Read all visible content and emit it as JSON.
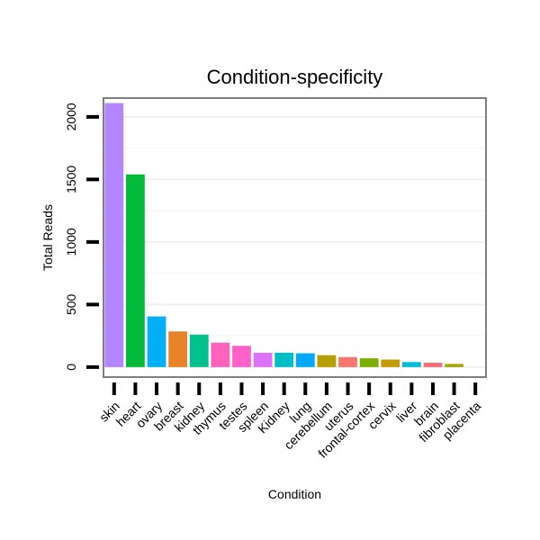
{
  "chart_data": {
    "type": "bar",
    "title": "Condition-specificity",
    "xlabel": "Condition",
    "ylabel": "Total Reads",
    "ylim": [
      -80,
      2150
    ],
    "yticks": [
      0,
      500,
      1000,
      1500,
      2000
    ],
    "grid": true,
    "categories": [
      "skin",
      "heart",
      "ovary",
      "breast",
      "kidney",
      "thymus",
      "testes",
      "spleen",
      "Kidney",
      "lung",
      "cerebellum",
      "uterus",
      "frontal-cortex",
      "cervix",
      "liver",
      "brain",
      "fibroblast",
      "placenta"
    ],
    "values": [
      2110,
      1540,
      405,
      285,
      260,
      195,
      170,
      115,
      115,
      110,
      95,
      80,
      70,
      60,
      40,
      35,
      25,
      0
    ],
    "colors": [
      "#B385FF",
      "#00BA38",
      "#00B0F6",
      "#E8832A",
      "#00C08B",
      "#FF62BC",
      "#FF61C9",
      "#DC71FA",
      "#00BFC4",
      "#00A9FF",
      "#B79F00",
      "#F8766D",
      "#7CAE00",
      "#C49A00",
      "#00BCD8",
      "#FD6C7A",
      "#A3A500",
      "#E76BF3"
    ]
  }
}
